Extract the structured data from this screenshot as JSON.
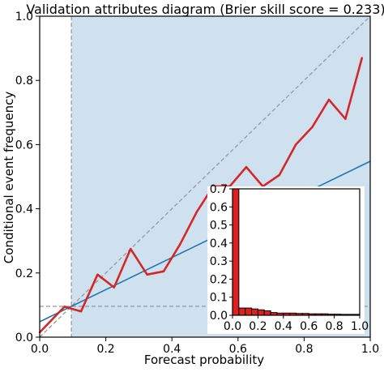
{
  "chart_data": [
    {
      "type": "line",
      "title": "Validation attributes diagram (Brier skill score = 0.233)",
      "xlabel": "Forecast probability",
      "ylabel": "Conditional event frequency",
      "xlim": [
        0,
        1
      ],
      "ylim": [
        0,
        1
      ],
      "xticks": [
        "0.0",
        "0.2",
        "0.4",
        "0.6",
        "0.8",
        "1.0"
      ],
      "yticks": [
        "0.0",
        "0.2",
        "0.4",
        "0.6",
        "0.8",
        "1.0"
      ],
      "grid": false,
      "climatology": 0.096,
      "reference_lines": {
        "perfect_reliability": {
          "x": [
            0,
            1
          ],
          "y": [
            0,
            1
          ]
        },
        "no_skill": {
          "x": [
            0,
            1
          ],
          "y": [
            0.048,
            0.548
          ]
        }
      },
      "series": [
        {
          "x": [
            0.0,
            0.075,
            0.125,
            0.175,
            0.225,
            0.275,
            0.325,
            0.375,
            0.425,
            0.475,
            0.525,
            0.575,
            0.625,
            0.675,
            0.725,
            0.775,
            0.825,
            0.875,
            0.925,
            0.975
          ],
          "y": [
            0.015,
            0.095,
            0.08,
            0.195,
            0.155,
            0.275,
            0.195,
            0.205,
            0.29,
            0.39,
            0.47,
            0.47,
            0.53,
            0.47,
            0.505,
            0.6,
            0.655,
            0.74,
            0.68,
            0.87
          ],
          "color": "#d62728"
        }
      ],
      "colors": {
        "skill_area": "#cfe1ef",
        "no_skill_line": "#1f77b4",
        "reliability": "#d62728",
        "reference": "#999999"
      }
    },
    {
      "type": "bar",
      "xlim": [
        0,
        1
      ],
      "ylim": [
        0,
        0.7
      ],
      "xticks": [
        "0.0",
        "0.2",
        "0.4",
        "0.6",
        "0.8",
        "1.0"
      ],
      "yticks": [
        "0.0",
        "0.1",
        "0.2",
        "0.3",
        "0.4",
        "0.5",
        "0.6",
        "0.7"
      ],
      "bin_width": 0.05,
      "x": [
        0.0,
        0.05,
        0.1,
        0.15,
        0.2,
        0.25,
        0.3,
        0.35,
        0.4,
        0.45,
        0.5,
        0.55,
        0.6,
        0.65,
        0.7,
        0.75,
        0.8,
        0.85,
        0.9,
        0.95
      ],
      "values": [
        0.7,
        0.04,
        0.04,
        0.035,
        0.03,
        0.025,
        0.015,
        0.012,
        0.012,
        0.012,
        0.01,
        0.01,
        0.008,
        0.008,
        0.008,
        0.006,
        0.006,
        0.005,
        0.005,
        0.005
      ],
      "color": "#dd1f1f"
    }
  ]
}
